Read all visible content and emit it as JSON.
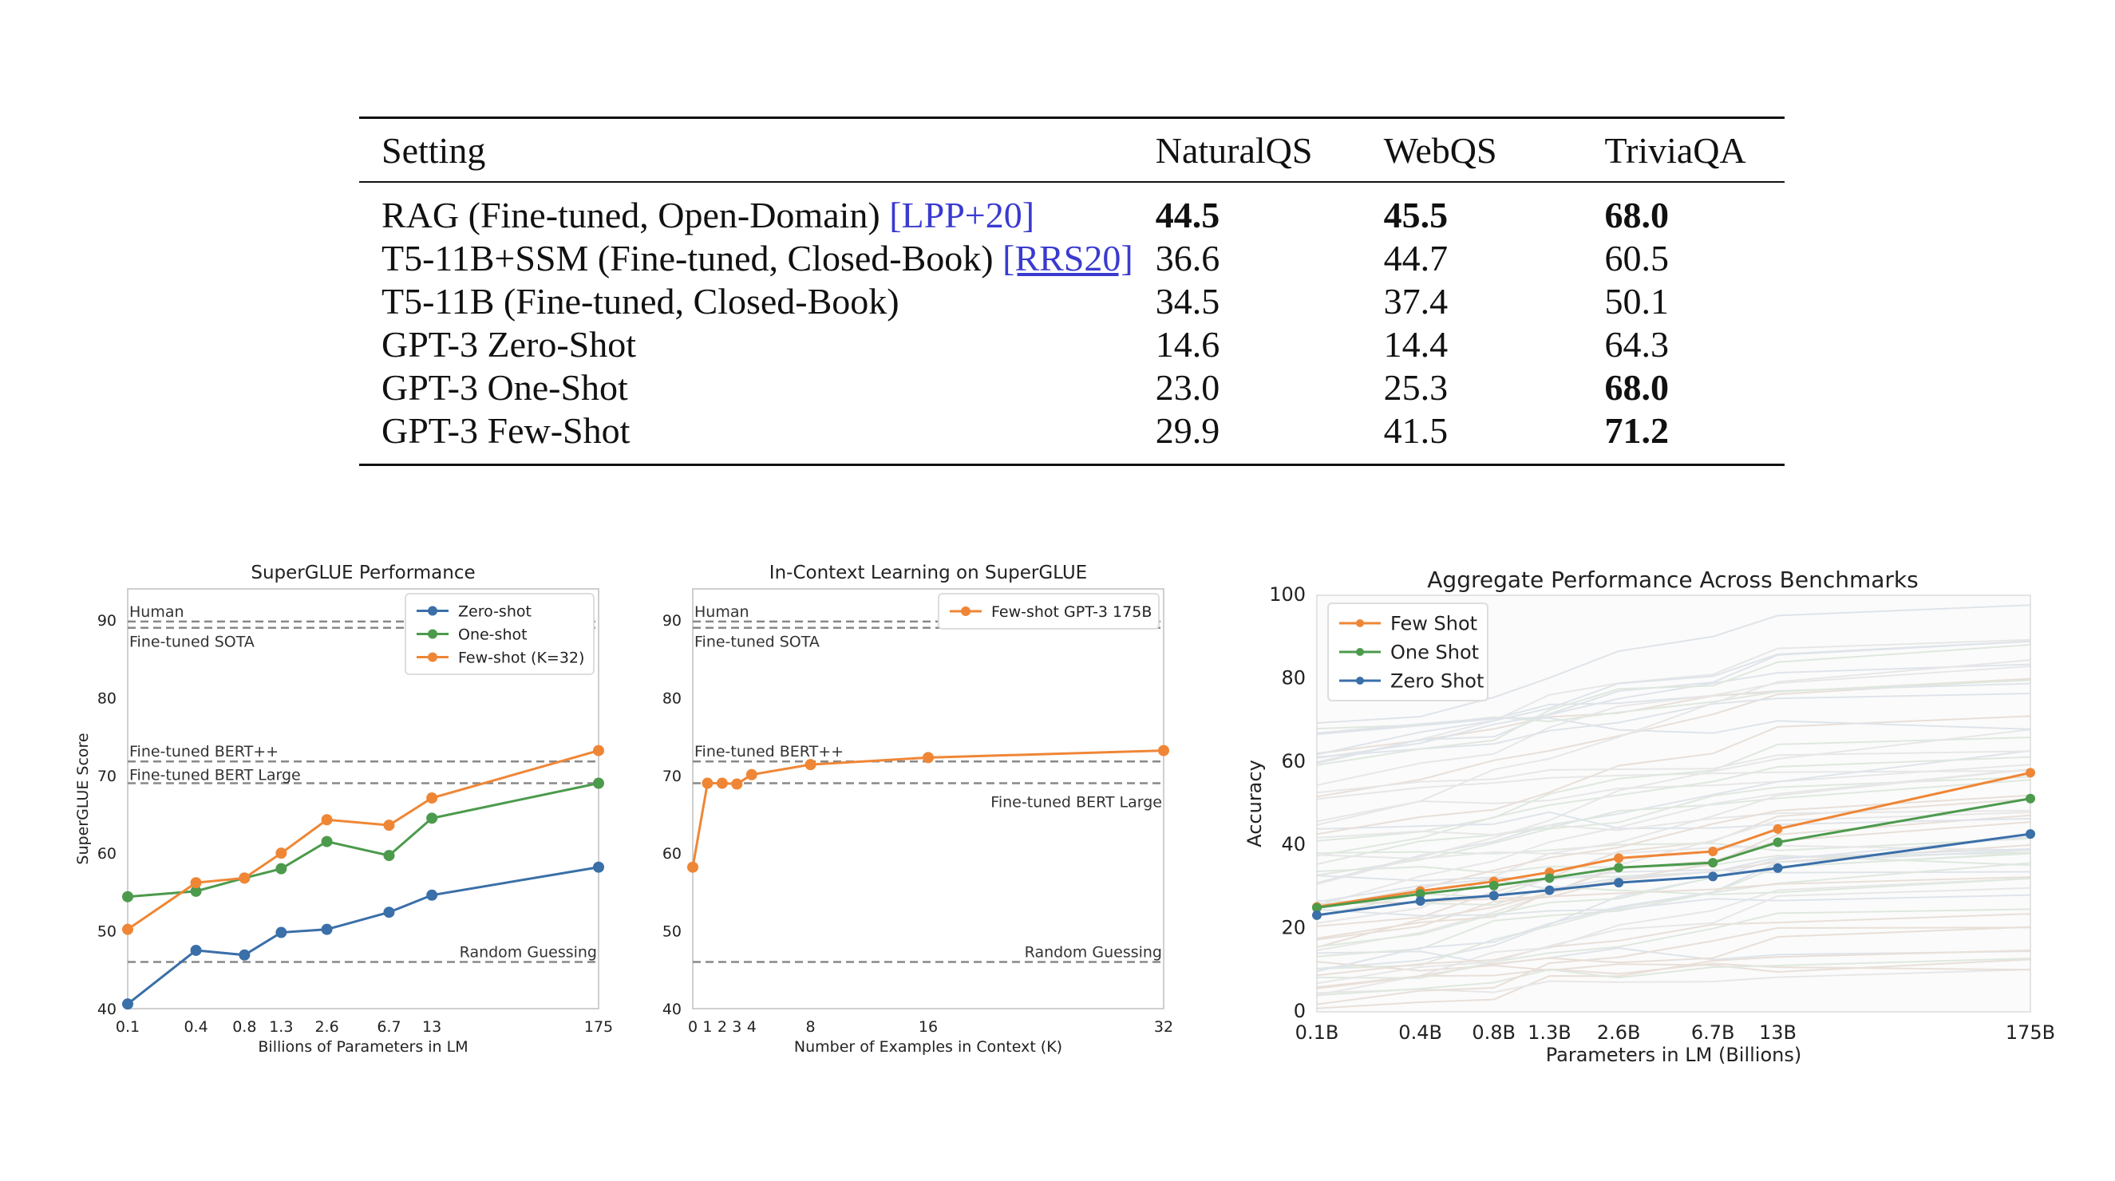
{
  "table": {
    "headers": [
      "Setting",
      "NaturalQS",
      "WebQS",
      "TriviaQA"
    ],
    "rows": [
      {
        "setting": "RAG (Fine-tuned, Open-Domain) ",
        "cite": "[LPP+20]",
        "values": [
          "44.5",
          "45.5",
          "68.0"
        ],
        "bold": [
          true,
          true,
          true
        ]
      },
      {
        "setting": "T5-11B+SSM (Fine-tuned, Closed-Book) ",
        "cite": "[RRS20]",
        "values": [
          "36.6",
          "44.7",
          "60.5"
        ],
        "bold": [
          false,
          false,
          false
        ]
      },
      {
        "setting": "T5-11B (Fine-tuned, Closed-Book)",
        "cite": "",
        "values": [
          "34.5",
          "37.4",
          "50.1"
        ],
        "bold": [
          false,
          false,
          false
        ]
      },
      {
        "setting": "GPT-3 Zero-Shot",
        "cite": "",
        "values": [
          "14.6",
          "14.4",
          "64.3"
        ],
        "bold": [
          false,
          false,
          false
        ]
      },
      {
        "setting": "GPT-3 One-Shot",
        "cite": "",
        "values": [
          "23.0",
          "25.3",
          "68.0"
        ],
        "bold": [
          false,
          false,
          true
        ]
      },
      {
        "setting": "GPT-3 Few-Shot",
        "cite": "",
        "values": [
          "29.9",
          "41.5",
          "71.2"
        ],
        "bold": [
          false,
          false,
          true
        ]
      }
    ]
  },
  "chart_data": [
    {
      "type": "line",
      "title": "SuperGLUE Performance",
      "xlabel": "Billions of Parameters in LM",
      "ylabel": "SuperGLUE Score",
      "ylim": [
        40,
        94
      ],
      "x_ticks": [
        "0.1",
        "0.4",
        "0.8",
        "1.3",
        "2.6",
        "6.7",
        "13",
        "175"
      ],
      "y_ticks": [
        40,
        50,
        60,
        70,
        80,
        90
      ],
      "reference_lines": [
        {
          "label": "Human",
          "value": 89.8
        },
        {
          "label": "Fine-tuned SOTA",
          "value": 89.0
        },
        {
          "label": "Fine-tuned BERT++",
          "value": 71.8
        },
        {
          "label": "Fine-tuned BERT Large",
          "value": 69.0
        },
        {
          "label": "Random Guessing",
          "value": 46.0
        }
      ],
      "series": [
        {
          "name": "Zero-shot",
          "color": "#3a6fa8",
          "values": [
            40.6,
            47.5,
            46.9,
            49.8,
            50.2,
            52.4,
            54.6,
            58.2
          ]
        },
        {
          "name": "One-shot",
          "color": "#4c9a4c",
          "values": [
            54.4,
            55.1,
            56.8,
            58.0,
            61.5,
            59.7,
            64.5,
            69.0
          ]
        },
        {
          "name": "Few-shot (K=32)",
          "color": "#ef8636",
          "values": [
            50.2,
            56.2,
            56.8,
            60.0,
            64.3,
            63.6,
            67.1,
            73.2
          ]
        }
      ],
      "legend": "top-right"
    },
    {
      "type": "line",
      "title": "In-Context Learning on SuperGLUE",
      "xlabel": "Number of Examples in Context (K)",
      "ylim": [
        40,
        94
      ],
      "x_ticks": [
        "0",
        "1",
        "2",
        "3",
        "4",
        "8",
        "16",
        "32"
      ],
      "x": [
        0,
        1,
        2,
        3,
        4,
        8,
        16,
        32
      ],
      "y_ticks": [
        40,
        50,
        60,
        70,
        80,
        90
      ],
      "reference_lines": [
        {
          "label": "Human",
          "value": 89.8
        },
        {
          "label": "Fine-tuned SOTA",
          "value": 89.0
        },
        {
          "label": "Fine-tuned BERT++",
          "value": 71.8
        },
        {
          "label": "Fine-tuned BERT Large",
          "value": 69.0
        },
        {
          "label": "Random Guessing",
          "value": 46.0
        }
      ],
      "series": [
        {
          "name": "Few-shot GPT-3 175B",
          "color": "#ef8636",
          "values": [
            58.2,
            69.0,
            69.0,
            68.9,
            70.1,
            71.4,
            72.3,
            73.2
          ]
        }
      ],
      "legend": "top-right"
    },
    {
      "type": "line",
      "title": "Aggregate Performance Across Benchmarks",
      "xlabel": "Parameters in LM (Billions)",
      "ylabel": "Accuracy",
      "ylim": [
        0,
        100
      ],
      "x_ticks": [
        "0.1B",
        "0.4B",
        "0.8B",
        "1.3B",
        "2.6B",
        "6.7B",
        "13B",
        "175B"
      ],
      "y_ticks": [
        0,
        20,
        40,
        60,
        80,
        100
      ],
      "series": [
        {
          "name": "Few Shot",
          "color": "#ef8636",
          "values": [
            25.2,
            29.0,
            31.3,
            33.5,
            36.9,
            38.5,
            43.9,
            57.4
          ]
        },
        {
          "name": "One Shot",
          "color": "#4c9a4c",
          "values": [
            25.0,
            28.3,
            30.3,
            32.1,
            34.6,
            35.8,
            40.7,
            51.2
          ]
        },
        {
          "name": "Zero Shot",
          "color": "#3a6fa8",
          "values": [
            23.2,
            26.6,
            27.9,
            29.2,
            31.0,
            32.5,
            34.5,
            42.7
          ]
        }
      ],
      "legend": "top-left"
    }
  ]
}
